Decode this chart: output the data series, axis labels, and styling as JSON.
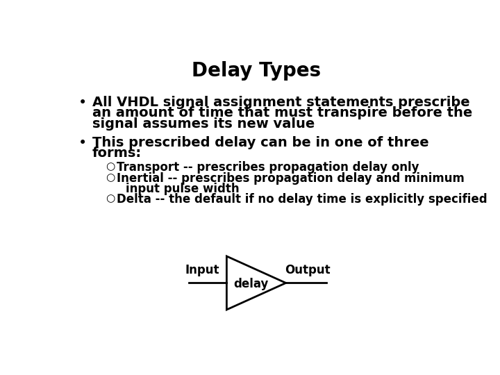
{
  "title": "Delay Types",
  "title_fontsize": 20,
  "title_fontweight": "bold",
  "background_color": "#ffffff",
  "text_color": "#000000",
  "bullet1_line1": "All VHDL signal assignment statements prescribe",
  "bullet1_line2": "an amount of time that must transpire before the",
  "bullet1_line3": "signal assumes its new value",
  "bullet2_line1": "This prescribed delay can be in one of three",
  "bullet2_line2": "forms:",
  "sub1": "Transport -- prescribes propagation delay only",
  "sub2_line1": "Inertial -- prescribes propagation delay and minimum",
  "sub2_line2": "  input pulse width",
  "sub3": "Delta -- the default if no delay time is explicitly specified",
  "bullet_fontsize": 14,
  "sub_fontsize": 12,
  "diagram_input_label": "Input",
  "diagram_output_label": "Output",
  "diagram_delay_label": "delay",
  "diagram_fontsize": 12
}
